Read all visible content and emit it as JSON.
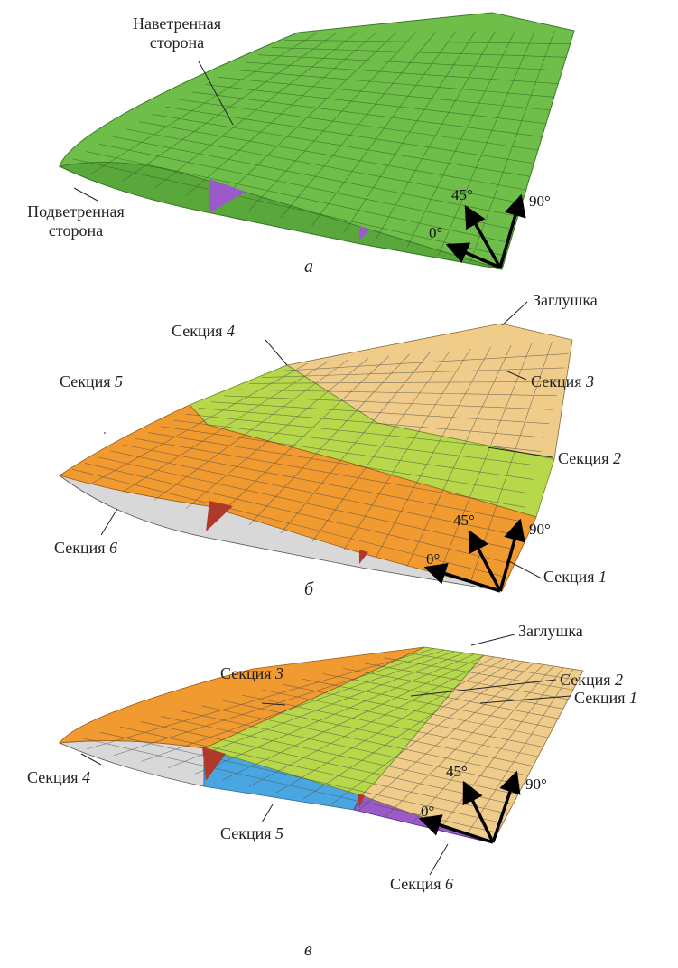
{
  "panel_a": {
    "letter": "а",
    "windward": [
      "Наветренная",
      "сторона"
    ],
    "leeward": [
      "Подветренная",
      "сторона"
    ],
    "angles": [
      "45°",
      "90°",
      "0°"
    ]
  },
  "panel_b": {
    "letter": "б",
    "cap": "Заглушка",
    "sections": [
      {
        "word": "Секция",
        "num": "4"
      },
      {
        "word": "Секция",
        "num": "5"
      },
      {
        "word": "Секция",
        "num": "3"
      },
      {
        "word": "Секция",
        "num": "2"
      },
      {
        "word": "Секция",
        "num": "6"
      },
      {
        "word": "Секция",
        "num": "1"
      }
    ],
    "angles": [
      "45°",
      "90°",
      "0°"
    ]
  },
  "panel_c": {
    "letter": "в",
    "cap": "Заглушка",
    "sections": [
      {
        "word": "Секция",
        "num": "3"
      },
      {
        "word": "Секция",
        "num": "2"
      },
      {
        "word": "Секция",
        "num": "1"
      },
      {
        "word": "Секция",
        "num": "4"
      },
      {
        "word": "Секция",
        "num": "5"
      },
      {
        "word": "Секция",
        "num": "6"
      }
    ],
    "angles": [
      "45°",
      "90°",
      "0°"
    ]
  },
  "colors": {
    "green": "#6fbe4a",
    "green_dark": "#4f9a36",
    "lime": "#b6d84a",
    "orange": "#f09a30",
    "beige": "#f0cc8a",
    "gray": "#d8d8d8",
    "blue": "#4aa6e0",
    "purple": "#9a5ac8",
    "red": "#b03a2a",
    "grid": "#4a4a4a"
  }
}
